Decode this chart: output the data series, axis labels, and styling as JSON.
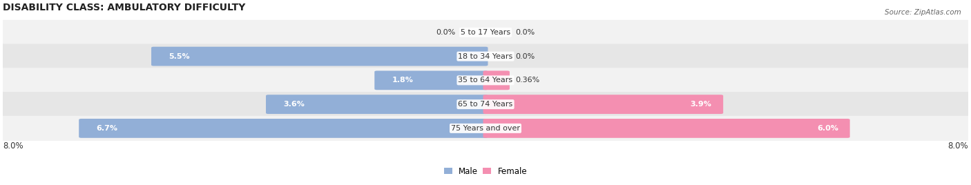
{
  "title": "DISABILITY CLASS: AMBULATORY DIFFICULTY",
  "source": "Source: ZipAtlas.com",
  "categories": [
    "5 to 17 Years",
    "18 to 34 Years",
    "35 to 64 Years",
    "65 to 74 Years",
    "75 Years and over"
  ],
  "male_values": [
    0.0,
    5.5,
    1.8,
    3.6,
    6.7
  ],
  "female_values": [
    0.0,
    0.0,
    0.36,
    3.9,
    6.0
  ],
  "male_color": "#92afd7",
  "female_color": "#f48fb1",
  "max_val": 8.0,
  "legend_male": "Male",
  "legend_female": "Female",
  "title_fontsize": 10,
  "bar_fontsize": 8,
  "cat_fontsize": 8,
  "row_bg_even": "#f2f2f2",
  "row_bg_odd": "#e6e6e6",
  "text_dark": "#333333",
  "text_white": "#ffffff"
}
